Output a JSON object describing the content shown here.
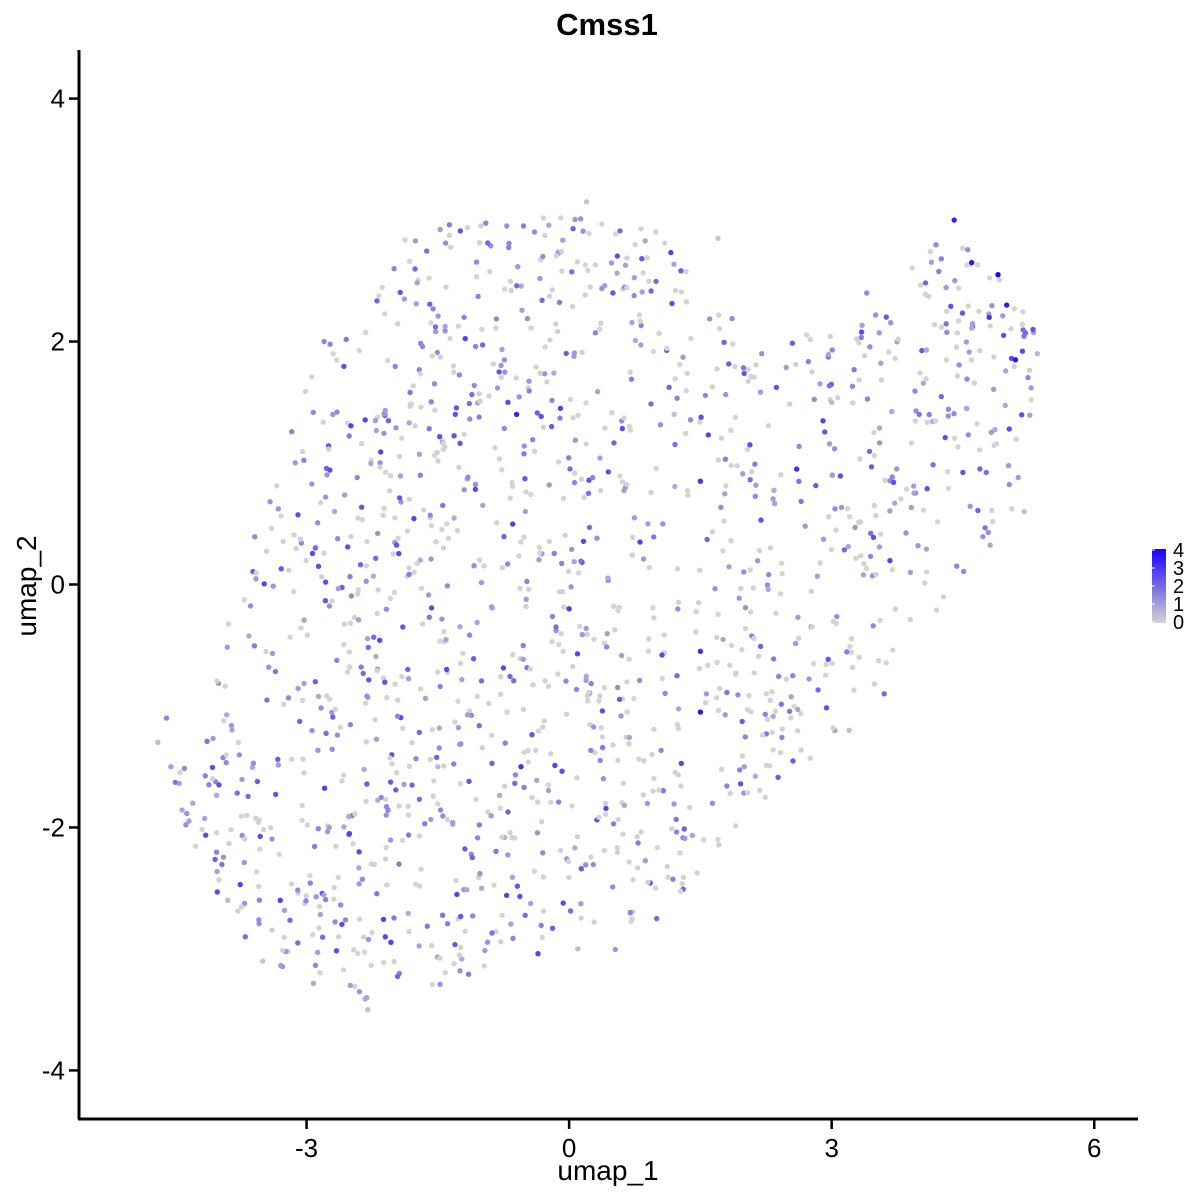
{
  "chart_data": {
    "type": "scatter",
    "title": "Cmss1",
    "xlabel": "umap_1",
    "ylabel": "umap_2",
    "xlim": [
      -5.6,
      6.5
    ],
    "ylim": [
      -4.4,
      4.4
    ],
    "x_ticks": [
      -3,
      0,
      3,
      6
    ],
    "y_ticks": [
      -4,
      -2,
      0,
      2,
      4
    ],
    "x_tick_labels": [
      "-3",
      "0",
      "3",
      "6"
    ],
    "y_tick_labels": [
      "-4",
      "-2",
      "0",
      "2",
      "4"
    ],
    "grid": false,
    "legend": {
      "placement": "right",
      "type": "colorbar",
      "min": 0,
      "max": 4,
      "ticks": [
        "4",
        "3",
        "2",
        "1",
        "0"
      ],
      "low_color": "#d3d3d3",
      "high_color": "#1a00ff"
    },
    "point_color_expression_low": "#d3d3d3",
    "point_color_expression_high": "#1a00ff",
    "points_estimated": [
      {
        "x": -4.7,
        "y": -1.3,
        "v": 0.5
      },
      {
        "x": -4.6,
        "y": -1.1,
        "v": 1.5
      },
      {
        "x": -4.55,
        "y": -1.5,
        "v": 1.0
      },
      {
        "x": -4.3,
        "y": -1.8,
        "v": 0.8
      },
      {
        "x": -4.0,
        "y": -1.65,
        "v": 2.5
      },
      {
        "x": -3.9,
        "y": -2.6,
        "v": 0.5
      },
      {
        "x": -3.7,
        "y": -2.9,
        "v": 2.0
      },
      {
        "x": -3.5,
        "y": -3.1,
        "v": 0.3
      },
      {
        "x": -3.3,
        "y": -2.6,
        "v": 2.8
      },
      {
        "x": -3.1,
        "y": -2.95,
        "v": 2.0
      },
      {
        "x": -2.9,
        "y": -0.8,
        "v": 2.2
      },
      {
        "x": -2.9,
        "y": 0.3,
        "v": 2.0
      },
      {
        "x": -2.8,
        "y": 2.0,
        "v": 1.5
      },
      {
        "x": -2.7,
        "y": 1.4,
        "v": 1.2
      },
      {
        "x": -2.5,
        "y": -3.3,
        "v": 1.0
      },
      {
        "x": -2.4,
        "y": -2.2,
        "v": 2.6
      },
      {
        "x": -2.3,
        "y": -3.5,
        "v": 0.4
      },
      {
        "x": -2.1,
        "y": -2.9,
        "v": 2.7
      },
      {
        "x": -2.0,
        "y": 2.6,
        "v": 1.5
      },
      {
        "x": -1.9,
        "y": -0.35,
        "v": 2.4
      },
      {
        "x": -1.7,
        "y": 0.9,
        "v": 1.6
      },
      {
        "x": -1.5,
        "y": -1.5,
        "v": 0.5
      },
      {
        "x": -1.4,
        "y": -0.7,
        "v": 2.6
      },
      {
        "x": -1.3,
        "y": 1.4,
        "v": 2.5
      },
      {
        "x": -1.2,
        "y": 2.2,
        "v": 1.5
      },
      {
        "x": -1.0,
        "y": -2.5,
        "v": 0.8
      },
      {
        "x": -0.8,
        "y": 1.75,
        "v": 2.4
      },
      {
        "x": -0.7,
        "y": 1.5,
        "v": 2.6
      },
      {
        "x": -0.6,
        "y": 1.4,
        "v": 3.4
      },
      {
        "x": -0.55,
        "y": -1.5,
        "v": 3.0
      },
      {
        "x": -0.5,
        "y": 0.6,
        "v": 1.0
      },
      {
        "x": -0.3,
        "y": 2.7,
        "v": 1.3
      },
      {
        "x": -0.2,
        "y": 1.3,
        "v": 2.3
      },
      {
        "x": -0.1,
        "y": 1.45,
        "v": 2.8
      },
      {
        "x": 0.0,
        "y": -0.2,
        "v": 2.9
      },
      {
        "x": 0.1,
        "y": -3.0,
        "v": 0.5
      },
      {
        "x": 0.2,
        "y": 3.15,
        "v": 0.3
      },
      {
        "x": 0.5,
        "y": 2.4,
        "v": 2.4
      },
      {
        "x": 0.7,
        "y": -2.7,
        "v": 1.5
      },
      {
        "x": 0.9,
        "y": 0.5,
        "v": 1.0
      },
      {
        "x": 1.0,
        "y": -2.75,
        "v": 2.0
      },
      {
        "x": 1.2,
        "y": 1.4,
        "v": 0.4
      },
      {
        "x": 1.5,
        "y": -1.05,
        "v": 3.6
      },
      {
        "x": 1.5,
        "y": 0.85,
        "v": 3.0
      },
      {
        "x": 1.5,
        "y": -0.55,
        "v": 3.2
      },
      {
        "x": 1.7,
        "y": 2.85,
        "v": 0.3
      },
      {
        "x": 2.0,
        "y": -1.5,
        "v": 1.0
      },
      {
        "x": 2.2,
        "y": 1.9,
        "v": 1.3
      },
      {
        "x": 2.6,
        "y": 0.95,
        "v": 3.1
      },
      {
        "x": 3.0,
        "y": 1.5,
        "v": 0.5
      },
      {
        "x": 3.2,
        "y": -1.2,
        "v": 0.4
      },
      {
        "x": 3.4,
        "y": 2.4,
        "v": 1.4
      },
      {
        "x": 3.6,
        "y": -0.9,
        "v": 2.0
      },
      {
        "x": 3.9,
        "y": 0.1,
        "v": 1.0
      },
      {
        "x": 4.0,
        "y": 1.4,
        "v": 1.8
      },
      {
        "x": 4.4,
        "y": 3.0,
        "v": 3.4
      },
      {
        "x": 4.6,
        "y": 2.65,
        "v": 3.6
      },
      {
        "x": 4.8,
        "y": 2.2,
        "v": 3.0
      },
      {
        "x": 4.9,
        "y": 2.55,
        "v": 4.0
      },
      {
        "x": 5.0,
        "y": 2.3,
        "v": 3.5
      },
      {
        "x": 5.1,
        "y": 1.85,
        "v": 3.6
      },
      {
        "x": 5.3,
        "y": 2.1,
        "v": 2.5
      },
      {
        "x": 5.35,
        "y": 1.9,
        "v": 0.6
      },
      {
        "x": 5.2,
        "y": 0.6,
        "v": 0.4
      }
    ]
  }
}
